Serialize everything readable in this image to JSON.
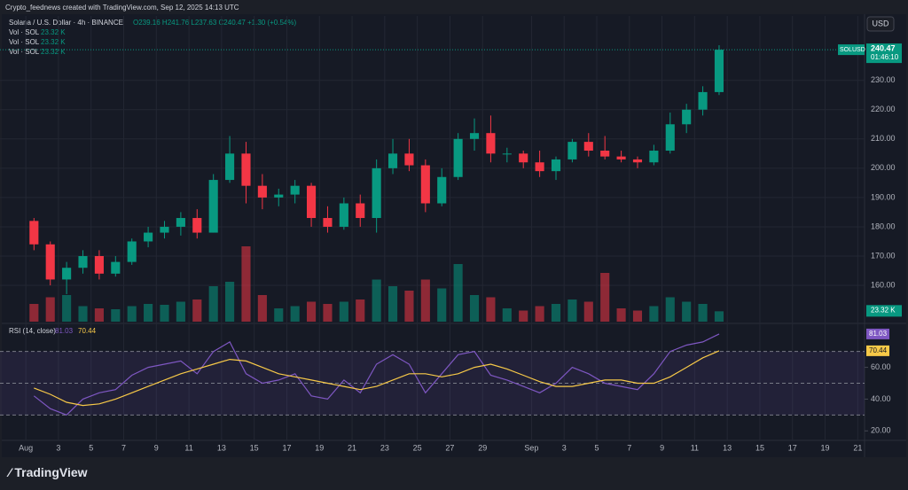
{
  "header": {
    "caption": "Crypto_feednews created with TradingView.com, Sep 12, 2025 14:13 UTC",
    "currency": "USD",
    "logo": "TradingView"
  },
  "chart_data": [
    {
      "type": "candlestick",
      "title": "Solana / U.S. Dollar · 4h · BINANCE",
      "ohlc_legend": "O239.16 H241.76 L237.63 C240.47 +1.30 (+0.54%)",
      "price_tag": {
        "symbol": "SOLUSD",
        "value": 240.47,
        "countdown": "01:46:10"
      },
      "up_color": "#089981",
      "down_color": "#f23645",
      "x": [
        "2025-08-01",
        "2025-08-02",
        "2025-08-03",
        "2025-08-04",
        "2025-08-05",
        "2025-08-06",
        "2025-08-07",
        "2025-08-08",
        "2025-08-09",
        "2025-08-10",
        "2025-08-11",
        "2025-08-12",
        "2025-08-13",
        "2025-08-14",
        "2025-08-15",
        "2025-08-16",
        "2025-08-17",
        "2025-08-18",
        "2025-08-19",
        "2025-08-20",
        "2025-08-21",
        "2025-08-22",
        "2025-08-23",
        "2025-08-24",
        "2025-08-25",
        "2025-08-26",
        "2025-08-27",
        "2025-08-28",
        "2025-08-29",
        "2025-08-30",
        "2025-08-31",
        "2025-09-01",
        "2025-09-02",
        "2025-09-03",
        "2025-09-04",
        "2025-09-05",
        "2025-09-06",
        "2025-09-07",
        "2025-09-08",
        "2025-09-09",
        "2025-09-10",
        "2025-09-11",
        "2025-09-12"
      ],
      "open": [
        182,
        174,
        162,
        166,
        170,
        164,
        168,
        175,
        178,
        180,
        183,
        178,
        196,
        205,
        194,
        190,
        191,
        194,
        183,
        180,
        188,
        183,
        200,
        205,
        201,
        188,
        197,
        210,
        212,
        205,
        205,
        202,
        199,
        203,
        209,
        206,
        204,
        203,
        202,
        206,
        215,
        220,
        226
      ],
      "high": [
        183,
        175,
        168,
        172,
        172,
        170,
        176,
        180,
        182,
        185,
        186,
        198,
        211,
        209,
        198,
        193,
        196,
        195,
        187,
        190,
        191,
        203,
        210,
        210,
        203,
        200,
        212,
        217,
        218,
        207,
        206,
        206,
        204,
        210,
        212,
        211,
        206,
        204,
        208,
        219,
        222,
        228,
        242
      ],
      "low": [
        172,
        160,
        157,
        164,
        162,
        163,
        167,
        173,
        176,
        177,
        176,
        178,
        195,
        188,
        186,
        187,
        188,
        180,
        178,
        179,
        180,
        178,
        198,
        199,
        185,
        187,
        196,
        206,
        202,
        202,
        200,
        197,
        196,
        202,
        204,
        203,
        202,
        200,
        201,
        205,
        212,
        218,
        225
      ],
      "close": [
        174,
        162,
        166,
        170,
        164,
        168,
        175,
        178,
        180,
        183,
        178,
        196,
        205,
        194,
        190,
        191,
        194,
        183,
        180,
        188,
        183,
        200,
        205,
        201,
        188,
        197,
        210,
        212,
        205,
        205,
        202,
        199,
        203,
        209,
        206,
        204,
        203,
        202,
        206,
        215,
        220,
        226,
        240.47
      ],
      "xlim": [
        "2025-07-30T10:00:00Z",
        "2025-09-21T10:00:00Z"
      ],
      "xticks": [
        {
          "value": "2025-08-01",
          "label": "Aug"
        },
        {
          "value": "2025-08-03",
          "label": "3"
        },
        {
          "value": "2025-08-05",
          "label": "5"
        },
        {
          "value": "2025-08-07",
          "label": "7"
        },
        {
          "value": "2025-08-09",
          "label": "9"
        },
        {
          "value": "2025-08-11",
          "label": "11"
        },
        {
          "value": "2025-08-13",
          "label": "13"
        },
        {
          "value": "2025-08-15",
          "label": "15"
        },
        {
          "value": "2025-08-17",
          "label": "17"
        },
        {
          "value": "2025-08-19",
          "label": "19"
        },
        {
          "value": "2025-08-21",
          "label": "21"
        },
        {
          "value": "2025-08-23",
          "label": "23"
        },
        {
          "value": "2025-08-25",
          "label": "25"
        },
        {
          "value": "2025-08-27",
          "label": "27"
        },
        {
          "value": "2025-08-29",
          "label": "29"
        },
        {
          "value": "2025-09-01",
          "label": "Sep"
        },
        {
          "value": "2025-09-03",
          "label": "3"
        },
        {
          "value": "2025-09-05",
          "label": "5"
        },
        {
          "value": "2025-09-07",
          "label": "7"
        },
        {
          "value": "2025-09-09",
          "label": "9"
        },
        {
          "value": "2025-09-11",
          "label": "11"
        },
        {
          "value": "2025-09-13",
          "label": "13"
        },
        {
          "value": "2025-09-15",
          "label": "15"
        },
        {
          "value": "2025-09-17",
          "label": "17"
        },
        {
          "value": "2025-09-19",
          "label": "19"
        },
        {
          "value": "2025-09-21",
          "label": "21"
        }
      ],
      "ylim": [
        147,
        252
      ],
      "yticks": [
        {
          "value": 160,
          "label": "160.00"
        },
        {
          "value": 170,
          "label": "170.00"
        },
        {
          "value": 180,
          "label": "180.00"
        },
        {
          "value": 190,
          "label": "190.00"
        },
        {
          "value": 200,
          "label": "200.00"
        },
        {
          "value": 210,
          "label": "210.00"
        },
        {
          "value": 220,
          "label": "220.00"
        },
        {
          "value": 230,
          "label": "230.00"
        }
      ],
      "grid": true
    },
    {
      "type": "volume",
      "title": "Vol · SOL",
      "legend_value": "23.32 K",
      "legend_count": 3,
      "values": [
        40,
        55,
        60,
        35,
        30,
        28,
        35,
        40,
        38,
        45,
        50,
        80,
        90,
        170,
        60,
        30,
        35,
        45,
        40,
        45,
        50,
        95,
        80,
        70,
        95,
        75,
        130,
        60,
        55,
        30,
        25,
        35,
        40,
        50,
        45,
        110,
        30,
        25,
        35,
        55,
        45,
        40,
        23.32
      ],
      "ylim": [
        0,
        200
      ]
    },
    {
      "type": "line",
      "title": "RSI (14, close)",
      "series": [
        {
          "name": "RSI",
          "color": "#7e57c2",
          "values": [
            42,
            34,
            30,
            40,
            44,
            46,
            55,
            60,
            62,
            64,
            56,
            70,
            76,
            56,
            50,
            52,
            56,
            42,
            40,
            52,
            44,
            62,
            68,
            62,
            44,
            56,
            68,
            70,
            55,
            52,
            48,
            44,
            50,
            60,
            56,
            50,
            48,
            46,
            56,
            70,
            74,
            76,
            81.03
          ]
        },
        {
          "name": "RSI-based MA",
          "color": "#f7c948",
          "values": [
            47,
            43,
            38,
            36,
            37,
            40,
            44,
            48,
            52,
            56,
            59,
            62,
            65,
            64,
            60,
            56,
            54,
            52,
            50,
            48,
            46,
            48,
            52,
            56,
            56,
            54,
            56,
            60,
            62,
            59,
            55,
            51,
            48,
            48,
            50,
            52,
            52,
            50,
            50,
            54,
            60,
            66,
            70.44
          ]
        }
      ],
      "bands": [
        30,
        50,
        70
      ],
      "ylim": [
        14,
        86
      ],
      "yticks": [
        {
          "value": 20,
          "label": "20.00"
        },
        {
          "value": 40,
          "label": "40.00"
        },
        {
          "value": 60,
          "label": "60.00"
        }
      ]
    }
  ]
}
